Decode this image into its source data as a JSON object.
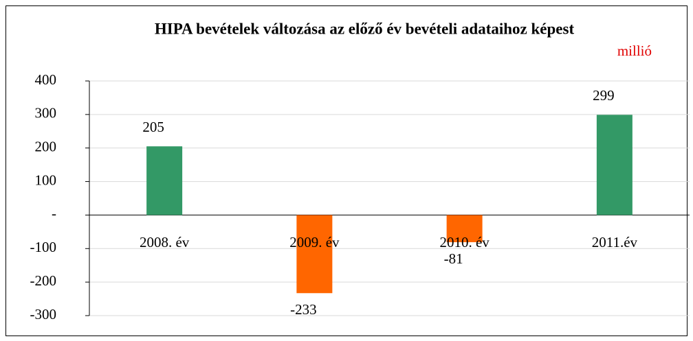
{
  "chart_data": {
    "type": "bar",
    "title": "HIPA bevételek változása az előző év bevételi adataihoz képest",
    "subtitle": "millió",
    "categories": [
      "2008. év",
      "2009. év",
      "2010. év",
      "2011.év"
    ],
    "values": [
      205,
      -233,
      -81,
      299
    ],
    "colors": [
      "#339966",
      "#ff6600",
      "#ff6600",
      "#339966"
    ],
    "ylim": [
      -300,
      400
    ],
    "yticks": [
      400,
      300,
      200,
      100,
      {
        "value": 0,
        "label": "-"
      },
      -100,
      -200,
      -300
    ],
    "grid": true
  }
}
